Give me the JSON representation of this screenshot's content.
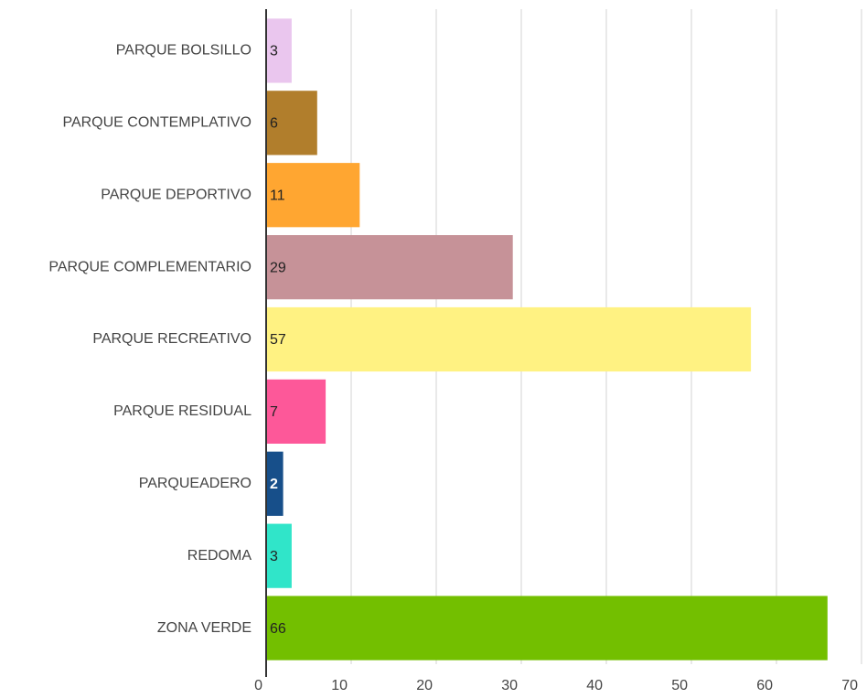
{
  "chart_data": {
    "type": "bar",
    "orientation": "horizontal",
    "categories": [
      "PARQUE BOLSILLO",
      "PARQUE CONTEMPLATIVO",
      "PARQUE DEPORTIVO",
      "PARQUE COMPLEMENTARIO",
      "PARQUE RECREATIVO",
      "PARQUE RESIDUAL",
      "PARQUEADERO",
      "REDOMA",
      "ZONA VERDE"
    ],
    "values": [
      3,
      6,
      11,
      29,
      57,
      7,
      2,
      3,
      66
    ],
    "colors": [
      "#eac6ee",
      "#b17e2c",
      "#ffa631",
      "#c69298",
      "#fff282",
      "#fd5899",
      "#174f8a",
      "#30e5c9",
      "#73bf00"
    ],
    "xlim": [
      0,
      70
    ],
    "xticks": [
      0,
      10,
      20,
      30,
      40,
      50,
      60,
      70
    ],
    "grid": true
  }
}
